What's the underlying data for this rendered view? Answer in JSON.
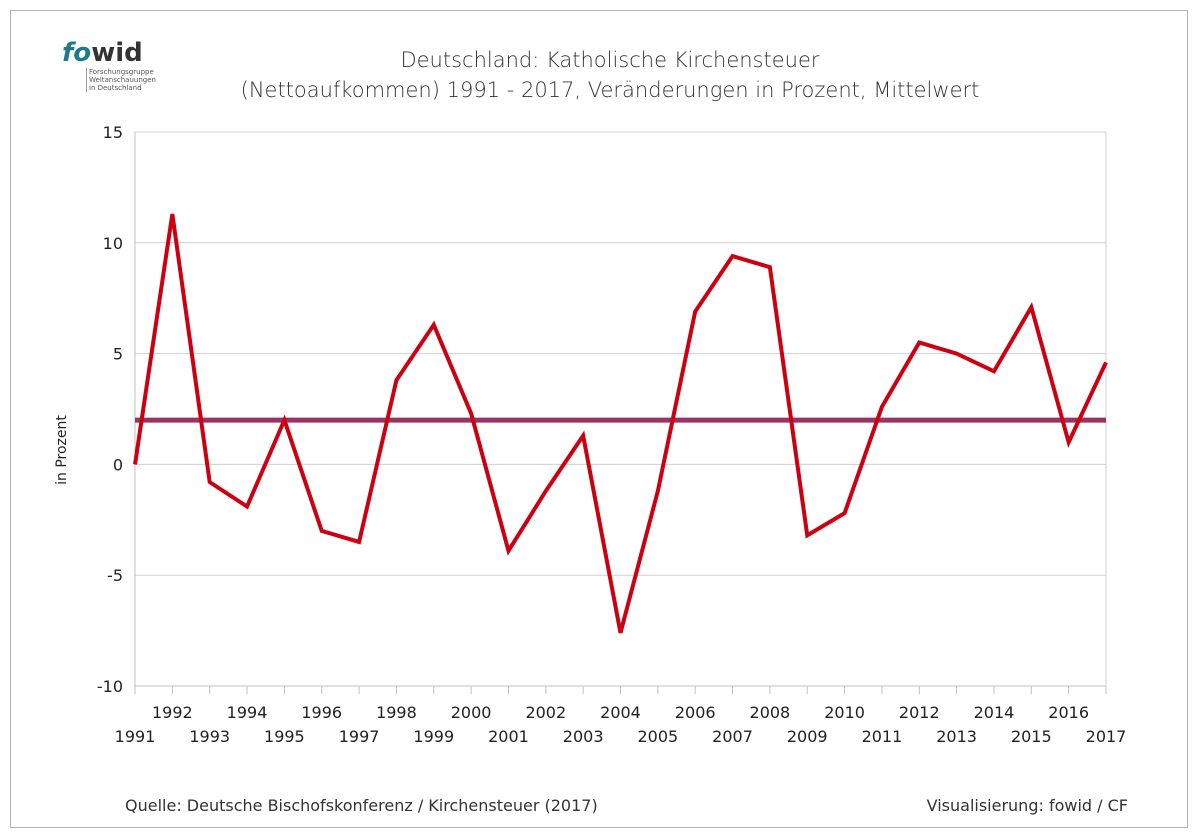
{
  "logo": {
    "part1": "fo",
    "part2": "wid",
    "subtitle": [
      "Forschungsgruppe",
      "Weltanschauungen",
      "in Deutschland"
    ]
  },
  "footer": {
    "source": "Quelle: Deutsche Bischofskonferenz / Kirchensteuer (2017)",
    "credit": "Visualisierung: fowid / CF"
  },
  "chart_data": {
    "type": "line",
    "title": [
      "Deutschland: Katholische Kirchensteuer",
      "(Nettoaufkommen) 1991 - 2017, Veränderungen in Prozent, Mittelwert"
    ],
    "xlabel": "",
    "ylabel": "in Prozent",
    "ylim": [
      -10,
      15
    ],
    "yticks": [
      15,
      10,
      5,
      0,
      -5,
      -10
    ],
    "grid": true,
    "colors": {
      "series": "#cc0011",
      "mean": "#993366"
    },
    "x": [
      1991,
      1992,
      1993,
      1994,
      1995,
      1996,
      1997,
      1998,
      1999,
      2000,
      2001,
      2002,
      2003,
      2004,
      2005,
      2006,
      2007,
      2008,
      2009,
      2010,
      2011,
      2012,
      2013,
      2014,
      2015,
      2016,
      2017
    ],
    "series": [
      {
        "values": [
          0,
          11.3,
          -0.8,
          -1.9,
          2.0,
          -3.0,
          -3.5,
          3.8,
          6.3,
          2.3,
          -3.9,
          -1.2,
          1.3,
          -7.6,
          -1.2,
          6.9,
          9.4,
          8.9,
          -3.2,
          -2.2,
          2.6,
          5.5,
          5.0,
          4.2,
          7.1,
          1.0,
          4.6
        ]
      },
      {
        "values": [
          2.0,
          2.0,
          2.0,
          2.0,
          2.0,
          2.0,
          2.0,
          2.0,
          2.0,
          2.0,
          2.0,
          2.0,
          2.0,
          2.0,
          2.0,
          2.0,
          2.0,
          2.0,
          2.0,
          2.0,
          2.0,
          2.0,
          2.0,
          2.0,
          2.0,
          2.0,
          2.0
        ]
      }
    ]
  }
}
